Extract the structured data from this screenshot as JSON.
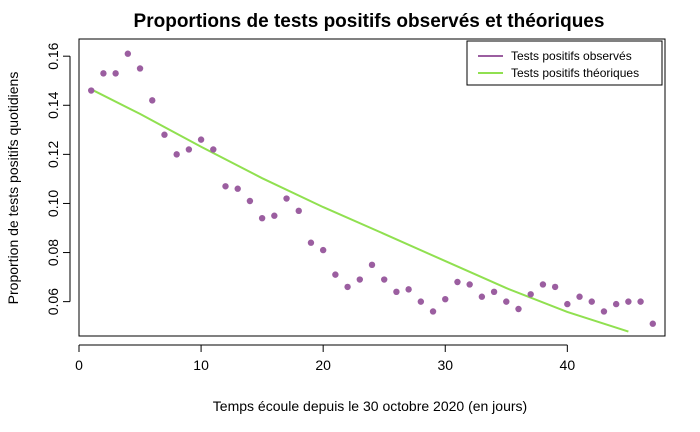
{
  "chart_data": {
    "type": "scatter",
    "title": "Proportions de tests positifs observés et théoriques",
    "xlabel": "Temps écoule depuis le 30 octobre 2020 (en jours)",
    "ylabel": "Proportion de tests positifs quotidiens",
    "xlim": [
      0,
      48
    ],
    "ylim": [
      0.046,
      0.167
    ],
    "x_ticks": [
      0,
      10,
      20,
      30,
      40
    ],
    "y_ticks": [
      0.06,
      0.08,
      0.1,
      0.12,
      0.14,
      0.16
    ],
    "y_tick_labels": [
      "0.06",
      "0.08",
      "0.10",
      "0.12",
      "0.14",
      "0.16"
    ],
    "grid": false,
    "legend_position": "top-right",
    "series": [
      {
        "name": "Tests positifs observés",
        "kind": "points",
        "color": "#9b5ea0",
        "x": [
          1,
          2,
          3,
          4,
          5,
          6,
          7,
          8,
          9,
          10,
          11,
          12,
          13,
          14,
          15,
          16,
          17,
          18,
          19,
          20,
          21,
          22,
          23,
          24,
          25,
          26,
          27,
          28,
          29,
          30,
          31,
          32,
          33,
          34,
          35,
          36,
          37,
          38,
          39,
          40,
          41,
          42,
          43,
          44,
          45,
          46,
          47
        ],
        "y": [
          0.146,
          0.153,
          0.153,
          0.161,
          0.155,
          0.142,
          0.128,
          0.12,
          0.122,
          0.126,
          0.122,
          0.107,
          0.106,
          0.101,
          0.094,
          0.095,
          0.102,
          0.097,
          0.084,
          0.081,
          0.071,
          0.066,
          0.069,
          0.075,
          0.069,
          0.064,
          0.065,
          0.06,
          0.056,
          0.061,
          0.068,
          0.067,
          0.062,
          0.064,
          0.06,
          0.057,
          0.063,
          0.067,
          0.066,
          0.059,
          0.062,
          0.06,
          0.056,
          0.059,
          0.06,
          0.06,
          0.051
        ]
      },
      {
        "name": "Tests positifs théoriques",
        "kind": "line",
        "color": "#90e050",
        "x": [
          1,
          5,
          10,
          15,
          20,
          25,
          30,
          35,
          40,
          45
        ],
        "y": [
          0.1465,
          0.1365,
          0.1231,
          0.1103,
          0.0985,
          0.0876,
          0.0765,
          0.0655,
          0.0558,
          0.0478
        ]
      }
    ]
  }
}
